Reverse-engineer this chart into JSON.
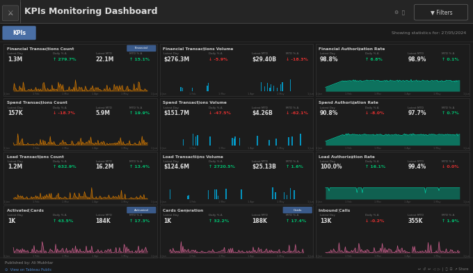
{
  "title": "KPIs Monitoring Dashboard",
  "subtitle_tab": "KPIs",
  "subtitle_right": "Showing statistics for: 27/05/2024",
  "bg_color": "#1a1a1a",
  "panel_bg": "#111111",
  "card_bg": "#1e1e1e",
  "card_border": "#333333",
  "text_white": "#e0e0e0",
  "text_gray": "#888888",
  "green": "#00c070",
  "red": "#e03030",
  "orange": "#e08000",
  "blue": "#00aadd",
  "teal": "#00c8a0",
  "pink": "#dd6699",
  "header_blue": "#3a5a8a",
  "cards": [
    {
      "title": "Financial Transactions Count",
      "tag": "Financial",
      "tag_color": "#3a5a8a",
      "latest_day": "1.3M",
      "daily_delta": "279.7%",
      "daily_up": true,
      "latest_mtd": "22.1M",
      "mtd_delta": "15.1%",
      "mtd_up": true,
      "chart_color": "#e08000",
      "chart_type": "line",
      "row": 0,
      "col": 0
    },
    {
      "title": "Financial Transactions Volume",
      "tag": "",
      "tag_color": "",
      "latest_day": "$276.3M",
      "daily_delta": "-5.9%",
      "daily_up": false,
      "latest_mtd": "$29.40B",
      "mtd_delta": "-18.3%",
      "mtd_up": false,
      "chart_color": "#00aadd",
      "chart_type": "bar",
      "row": 0,
      "col": 1
    },
    {
      "title": "Financial Authorization Rate",
      "tag": "",
      "tag_color": "",
      "latest_day": "98.8%",
      "daily_delta": "6.8%",
      "daily_up": true,
      "latest_mtd": "98.9%",
      "mtd_delta": "0.1%",
      "mtd_up": true,
      "chart_color": "#00c8a0",
      "chart_type": "flat",
      "row": 0,
      "col": 2
    },
    {
      "title": "Spend Transactions Count",
      "tag": "",
      "tag_color": "",
      "latest_day": "157K",
      "daily_delta": "-18.7%",
      "daily_up": false,
      "latest_mtd": "5.9M",
      "mtd_delta": "19.9%",
      "mtd_up": true,
      "chart_color": "#e08000",
      "chart_type": "line",
      "row": 1,
      "col": 0
    },
    {
      "title": "Spend Transactions Volume",
      "tag": "",
      "tag_color": "",
      "latest_day": "$151.7M",
      "daily_delta": "-47.5%",
      "daily_up": false,
      "latest_mtd": "$4.26B",
      "mtd_delta": "-62.1%",
      "mtd_up": false,
      "chart_color": "#00aadd",
      "chart_type": "bar",
      "row": 1,
      "col": 1
    },
    {
      "title": "Spend Authorization Rate",
      "tag": "",
      "tag_color": "",
      "latest_day": "90.8%",
      "daily_delta": "-8.0%",
      "daily_up": false,
      "latest_mtd": "97.7%",
      "mtd_delta": "0.7%",
      "mtd_up": true,
      "chart_color": "#00c8a0",
      "chart_type": "flat",
      "row": 1,
      "col": 2
    },
    {
      "title": "Load Transactions Count",
      "tag": "",
      "tag_color": "",
      "latest_day": "1.2M",
      "daily_delta": "632.9%",
      "daily_up": true,
      "latest_mtd": "16.2M",
      "mtd_delta": "13.4%",
      "mtd_up": true,
      "chart_color": "#e08000",
      "chart_type": "line",
      "row": 2,
      "col": 0
    },
    {
      "title": "Load Transactions Volume",
      "tag": "",
      "tag_color": "",
      "latest_day": "$124.6M",
      "daily_delta": "2720.5%",
      "daily_up": true,
      "latest_mtd": "$25.13B",
      "mtd_delta": "1.6%",
      "mtd_up": true,
      "chart_color": "#00aadd",
      "chart_type": "bar",
      "row": 2,
      "col": 1
    },
    {
      "title": "Load Authorization Rate",
      "tag": "",
      "tag_color": "",
      "latest_day": "100.0%",
      "daily_delta": "16.1%",
      "daily_up": true,
      "latest_mtd": "99.4%",
      "mtd_delta": "0.0%",
      "mtd_up": false,
      "chart_color": "#00c8a0",
      "chart_type": "flat2",
      "row": 2,
      "col": 2
    },
    {
      "title": "Activated Cards",
      "tag": "Activated",
      "tag_color": "#3a5a8a",
      "latest_day": "1K",
      "daily_delta": "43.5%",
      "daily_up": true,
      "latest_mtd": "184K",
      "mtd_delta": "17.3%",
      "mtd_up": true,
      "chart_color": "#dd6699",
      "chart_type": "line_pink",
      "row": 3,
      "col": 0
    },
    {
      "title": "Cards Generation",
      "tag": "Cards",
      "tag_color": "#3a5a8a",
      "latest_day": "1K",
      "daily_delta": "32.2%",
      "daily_up": true,
      "latest_mtd": "188K",
      "mtd_delta": "17.4%",
      "mtd_up": true,
      "chart_color": "#dd6699",
      "chart_type": "line_pink",
      "row": 3,
      "col": 1
    },
    {
      "title": "Inbound Calls",
      "tag": "",
      "tag_color": "",
      "latest_day": "13K",
      "daily_delta": "-0.2%",
      "daily_up": false,
      "latest_mtd": "355K",
      "mtd_delta": "1.9%",
      "mtd_up": true,
      "chart_color": "#dd6699",
      "chart_type": "line_pink",
      "row": 3,
      "col": 2
    }
  ]
}
